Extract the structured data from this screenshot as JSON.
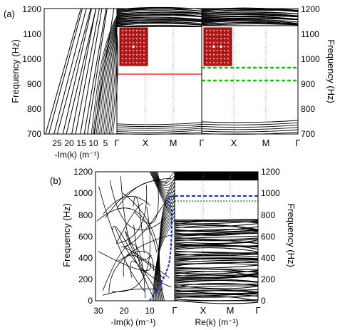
{
  "chart_data": [
    {
      "panel_label": "(a)",
      "type": "line",
      "ylabel_left": "Frequency (Hz)",
      "ylabel_right": "Frequency (Hz)",
      "ylim": [
        700,
        1200
      ],
      "yticks": [
        "700",
        "800",
        "900",
        "1000",
        "1100",
        "1200"
      ],
      "im_panel": {
        "xlabel": "-Im(k) (m⁻¹)",
        "xticks": [
          "25",
          "20",
          "15",
          "10",
          "5"
        ],
        "xlim": [
          30,
          0
        ]
      },
      "band_panels": [
        {
          "xticks": [
            "Γ",
            "X",
            "M",
            "Γ"
          ],
          "defect_mode_hz": [
            930
          ],
          "mode_color": "#ff0000",
          "mode_style": "solid",
          "gap_hz": [
            748,
            1128
          ]
        },
        {
          "xticks": [
            "Γ",
            "X",
            "M",
            "Γ"
          ],
          "defect_mode_hz": [
            952,
            912
          ],
          "mode_color": "#00cc00",
          "mode_style": "dashed",
          "gap_hz": [
            758,
            1132
          ]
        }
      ]
    },
    {
      "panel_label": "(b)",
      "type": "line",
      "ylabel_left": "Frequency (Hz)",
      "ylabel_right": "Frequency (Hz)",
      "ylim": [
        0,
        1200
      ],
      "yticks": [
        "0",
        "200",
        "400",
        "600",
        "800",
        "1000",
        "1200"
      ],
      "im_panel": {
        "xlabel": "-Im(k) (m⁻¹)",
        "xticks": [
          "30",
          "20",
          "10",
          "Γ"
        ],
        "xlim": [
          30,
          0
        ]
      },
      "band_panel": {
        "xlabel": "Re(k) (m⁻¹)",
        "xticks": [
          "X",
          "M",
          "Γ"
        ],
        "gap_hz": [
          750,
          1120
        ],
        "modes": [
          {
            "freq_hz": 945,
            "color": "#1a2fd0",
            "style": "dashed"
          },
          {
            "freq_hz": 905,
            "color": "#00cc00",
            "style": "dotted"
          }
        ]
      }
    }
  ]
}
